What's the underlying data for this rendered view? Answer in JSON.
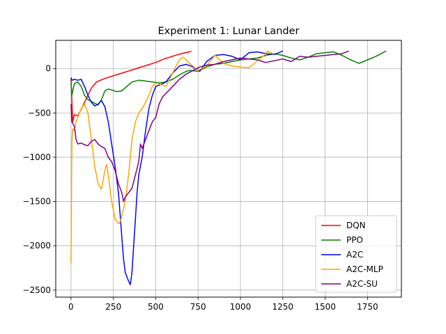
{
  "chart_data": {
    "type": "line",
    "title": "Experiment 1: Lunar Lander",
    "xlabel": "",
    "ylabel": "",
    "xlim": [
      -90,
      1950
    ],
    "ylim": [
      -2580,
      320
    ],
    "xticks": [
      0,
      250,
      500,
      750,
      1000,
      1250,
      1500,
      1750
    ],
    "yticks": [
      0,
      -500,
      -1000,
      -1500,
      -2000,
      -2500
    ],
    "xtick_labels": [
      "0",
      "250",
      "500",
      "750",
      "1000",
      "1250",
      "1500",
      "1750"
    ],
    "ytick_labels": [
      "0",
      "−500",
      "−1000",
      "−1500",
      "−2000",
      "−2500"
    ],
    "grid": true,
    "legend_position": "lower-right",
    "series": [
      {
        "name": "DQN",
        "color": "#ff0000",
        "x": [
          0,
          10,
          20,
          40,
          60,
          80,
          100,
          120,
          150,
          200,
          250,
          300,
          350,
          400,
          450,
          500,
          550,
          600,
          650,
          700,
          710
        ],
        "y": [
          -110,
          -600,
          -520,
          -530,
          -460,
          -380,
          -300,
          -220,
          -150,
          -110,
          -80,
          -50,
          -20,
          10,
          40,
          70,
          110,
          140,
          170,
          190,
          200
        ]
      },
      {
        "name": "PPO",
        "color": "#008000",
        "x": [
          0,
          5,
          20,
          40,
          60,
          80,
          100,
          130,
          160,
          180,
          200,
          220,
          240,
          270,
          300,
          330,
          360,
          400,
          440,
          480,
          520,
          560,
          600,
          640,
          680,
          700,
          750,
          800,
          850,
          900,
          950,
          1000,
          1050,
          1100,
          1150,
          1200,
          1250,
          1300,
          1350,
          1400,
          1450,
          1500,
          1550,
          1600,
          1650,
          1700,
          1750,
          1800,
          1860
        ],
        "y": [
          -150,
          -300,
          -170,
          -150,
          -200,
          -300,
          -350,
          -380,
          -410,
          -350,
          -250,
          -230,
          -240,
          -260,
          -250,
          -200,
          -150,
          -130,
          -140,
          -150,
          -160,
          -150,
          -120,
          -70,
          -30,
          -20,
          -30,
          20,
          50,
          60,
          80,
          100,
          110,
          120,
          150,
          170,
          150,
          120,
          100,
          130,
          170,
          180,
          190,
          150,
          100,
          60,
          100,
          140,
          200
        ]
      },
      {
        "name": "A2C",
        "color": "#0000ff",
        "x": [
          0,
          5,
          20,
          40,
          60,
          80,
          100,
          120,
          140,
          160,
          180,
          200,
          220,
          240,
          260,
          280,
          300,
          310,
          320,
          330,
          340,
          350,
          360,
          370,
          380,
          390,
          400,
          420,
          440,
          460,
          480,
          500,
          530,
          560,
          600,
          640,
          680,
          720,
          760,
          800,
          850,
          900,
          950,
          1000,
          1050,
          1100,
          1150,
          1200,
          1250
        ],
        "y": [
          -100,
          -130,
          -120,
          -130,
          -120,
          -200,
          -300,
          -380,
          -420,
          -400,
          -360,
          -430,
          -600,
          -850,
          -1100,
          -1400,
          -1900,
          -2150,
          -2300,
          -2350,
          -2400,
          -2440,
          -2300,
          -2000,
          -1700,
          -1400,
          -1200,
          -1000,
          -700,
          -450,
          -300,
          -200,
          -180,
          -150,
          -50,
          30,
          50,
          20,
          -30,
          80,
          150,
          160,
          140,
          100,
          180,
          190,
          170,
          160,
          200
        ]
      },
      {
        "name": "A2C-MLP",
        "color": "#ffa500",
        "x": [
          0,
          2,
          4,
          6,
          10,
          20,
          30,
          40,
          60,
          80,
          100,
          120,
          140,
          160,
          180,
          200,
          210,
          220,
          240,
          260,
          280,
          290,
          300,
          320,
          340,
          360,
          380,
          400,
          420,
          440,
          460,
          480,
          500,
          530,
          560,
          600,
          620,
          640,
          660,
          680,
          700,
          720,
          750,
          780,
          800,
          850,
          900,
          950,
          1000,
          1050,
          1100,
          1120,
          1140,
          1160,
          1180,
          1200
        ],
        "y": [
          -2200,
          -1700,
          -1100,
          -800,
          -680,
          -700,
          -600,
          -550,
          -450,
          -400,
          -500,
          -800,
          -1100,
          -1300,
          -1360,
          -1150,
          -1080,
          -1200,
          -1500,
          -1700,
          -1750,
          -1730,
          -1660,
          -1500,
          -1200,
          -800,
          -600,
          -500,
          -450,
          -380,
          -300,
          -200,
          -160,
          -180,
          -200,
          -50,
          30,
          100,
          130,
          100,
          60,
          30,
          -20,
          10,
          30,
          150,
          60,
          30,
          20,
          10,
          90,
          120,
          150,
          200,
          180,
          160
        ]
      },
      {
        "name": "A2C-SU",
        "color": "#800080",
        "x": [
          0,
          5,
          10,
          20,
          30,
          40,
          60,
          80,
          100,
          120,
          140,
          160,
          180,
          200,
          220,
          240,
          260,
          280,
          300,
          310,
          320,
          340,
          360,
          380,
          400,
          410,
          420,
          440,
          460,
          480,
          500,
          520,
          540,
          560,
          600,
          640,
          680,
          720,
          760,
          800,
          850,
          900,
          950,
          1000,
          1050,
          1100,
          1150,
          1200,
          1250,
          1300,
          1350,
          1400,
          1450,
          1500,
          1550,
          1600,
          1640
        ],
        "y": [
          -400,
          -600,
          -620,
          -650,
          -800,
          -850,
          -840,
          -860,
          -870,
          -820,
          -800,
          -850,
          -880,
          -900,
          -1000,
          -1050,
          -1150,
          -1300,
          -1400,
          -1500,
          -1450,
          -1400,
          -1350,
          -1200,
          -1050,
          -850,
          -900,
          -800,
          -700,
          -600,
          -550,
          -400,
          -320,
          -280,
          -200,
          -120,
          -60,
          -20,
          20,
          40,
          50,
          80,
          100,
          120,
          110,
          100,
          70,
          90,
          110,
          80,
          140,
          130,
          140,
          150,
          160,
          170,
          200
        ]
      }
    ]
  }
}
